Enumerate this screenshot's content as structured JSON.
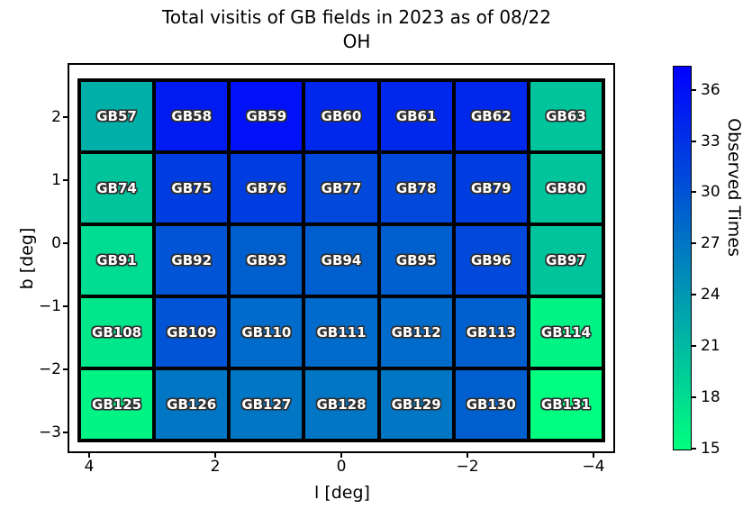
{
  "title": {
    "line1": "Total visitis of GB fields in 2023 as of 08/22",
    "line2": "OH"
  },
  "axes": {
    "xlabel": "l [deg]",
    "ylabel": "b [deg]",
    "x_ticks": [
      {
        "label": "4",
        "value": 4
      },
      {
        "label": "2",
        "value": 2
      },
      {
        "label": "0",
        "value": 0
      },
      {
        "label": "−2",
        "value": -2
      },
      {
        "label": "−4",
        "value": -4
      }
    ],
    "y_ticks": [
      {
        "label": "2",
        "value": 2
      },
      {
        "label": "1",
        "value": 1
      },
      {
        "label": "0",
        "value": 0
      },
      {
        "label": "−1",
        "value": -1
      },
      {
        "label": "−2",
        "value": -2
      },
      {
        "label": "−3",
        "value": -3
      }
    ]
  },
  "colorbar": {
    "label": "Observed Times",
    "ticks": [
      15,
      18,
      21,
      24,
      27,
      30,
      33,
      36
    ],
    "vmin": 14.9,
    "vmax": 37.4,
    "color_min": "#00ff7f",
    "color_max": "#0000ff"
  },
  "chart_data": {
    "type": "heatmap",
    "title": "Total visitis of GB fields in 2023 as of 08/22 OH",
    "xlabel": "l [deg]",
    "ylabel": "b [deg]",
    "x_axis_inverted": true,
    "xlim": [
      4.34,
      -4.34
    ],
    "ylim": [
      -3.33,
      2.86
    ],
    "colormap": "green-to-blue (winter reversed)",
    "colorbar_label": "Observed Times",
    "colorbar_ticks": [
      15,
      18,
      21,
      24,
      27,
      30,
      33,
      36
    ],
    "rows": [
      {
        "fields": [
          "GB57",
          "GB58",
          "GB59",
          "GB60",
          "GB61",
          "GB62",
          "GB63"
        ],
        "values": [
          22,
          35,
          36,
          34,
          34,
          34,
          20
        ]
      },
      {
        "fields": [
          "GB74",
          "GB75",
          "GB76",
          "GB77",
          "GB78",
          "GB79",
          "GB80"
        ],
        "values": [
          20,
          32,
          32,
          31,
          31,
          32,
          20
        ]
      },
      {
        "fields": [
          "GB91",
          "GB92",
          "GB93",
          "GB94",
          "GB95",
          "GB96",
          "GB97"
        ],
        "values": [
          18,
          30,
          29,
          29,
          29,
          31,
          20
        ]
      },
      {
        "fields": [
          "GB108",
          "GB109",
          "GB110",
          "GB111",
          "GB112",
          "GB113",
          "GB114"
        ],
        "values": [
          17,
          30,
          28,
          28,
          28,
          29,
          16
        ]
      },
      {
        "fields": [
          "GB125",
          "GB126",
          "GB127",
          "GB128",
          "GB129",
          "GB130",
          "GB131"
        ],
        "values": [
          16,
          27,
          27,
          27,
          27,
          29,
          15
        ]
      }
    ]
  }
}
